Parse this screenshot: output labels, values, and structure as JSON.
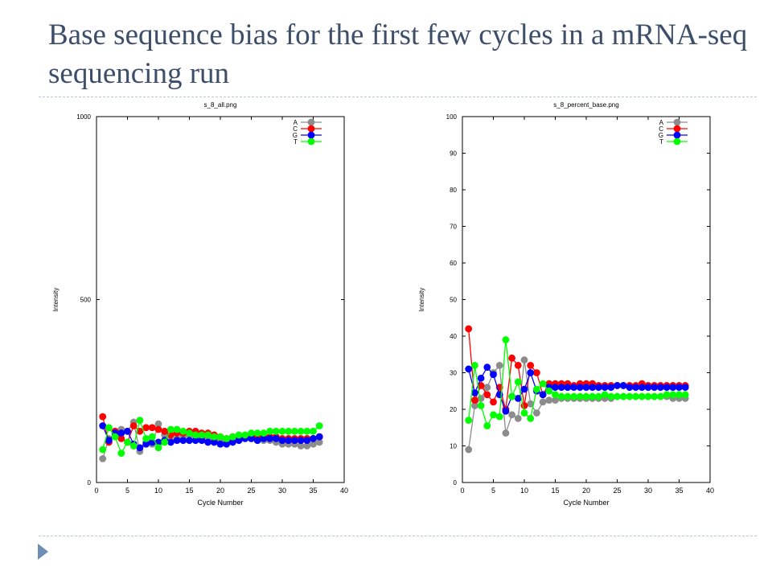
{
  "slide": {
    "title": "Base sequence bias for the first few cycles in a mRNA-seq sequencing run"
  },
  "colors": {
    "A": "#8c8c8c",
    "C": "#ff0000",
    "G": "#0000ff",
    "T": "#00ff00",
    "title_text": "#3d4e6a",
    "rule": "#b8c6d6",
    "bullet": "#6f8eb5"
  },
  "chart_data": [
    {
      "type": "line",
      "title": "s_8_all.png",
      "xlabel": "Cycle Number",
      "ylabel": "Intensity",
      "xlim": [
        0,
        40
      ],
      "ylim": [
        0,
        1000
      ],
      "xticks": [
        0,
        5,
        10,
        15,
        20,
        25,
        30,
        35,
        40
      ],
      "yticks": [
        0,
        500,
        1000
      ],
      "grid": false,
      "legend": "top-right",
      "x": [
        1,
        2,
        3,
        4,
        5,
        6,
        7,
        8,
        9,
        10,
        11,
        12,
        13,
        14,
        15,
        16,
        17,
        18,
        19,
        20,
        21,
        22,
        23,
        24,
        25,
        26,
        27,
        28,
        29,
        30,
        31,
        32,
        33,
        34,
        35,
        36
      ],
      "series": [
        {
          "name": "A",
          "color": "#8c8c8c",
          "values": [
            65,
            120,
            130,
            145,
            140,
            165,
            85,
            110,
            105,
            160,
            130,
            115,
            120,
            125,
            130,
            125,
            125,
            120,
            120,
            115,
            115,
            120,
            120,
            125,
            120,
            115,
            115,
            115,
            110,
            105,
            105,
            105,
            100,
            100,
            105,
            110
          ]
        },
        {
          "name": "C",
          "color": "#ff0000",
          "values": [
            180,
            110,
            140,
            120,
            110,
            155,
            140,
            150,
            150,
            145,
            140,
            130,
            135,
            135,
            140,
            140,
            135,
            135,
            130,
            125,
            120,
            125,
            125,
            125,
            125,
            125,
            125,
            125,
            125,
            120,
            120,
            120,
            120,
            120,
            120,
            125
          ]
        },
        {
          "name": "G",
          "color": "#0000ff",
          "values": [
            155,
            115,
            135,
            135,
            140,
            105,
            95,
            105,
            110,
            110,
            115,
            110,
            115,
            115,
            115,
            115,
            115,
            110,
            110,
            105,
            105,
            110,
            115,
            120,
            120,
            115,
            120,
            120,
            120,
            115,
            115,
            115,
            115,
            115,
            120,
            125
          ]
        },
        {
          "name": "T",
          "color": "#00ff00",
          "values": [
            90,
            150,
            125,
            80,
            110,
            100,
            170,
            120,
            125,
            95,
            110,
            145,
            145,
            140,
            135,
            130,
            130,
            130,
            125,
            125,
            120,
            125,
            130,
            130,
            135,
            135,
            135,
            140,
            140,
            140,
            140,
            140,
            140,
            140,
            140,
            155
          ]
        }
      ]
    },
    {
      "type": "line",
      "title": "s_8_percent_base.png",
      "xlabel": "Cycle Number",
      "ylabel": "Intensity",
      "xlim": [
        0,
        40
      ],
      "ylim": [
        0,
        100
      ],
      "xticks": [
        0,
        5,
        10,
        15,
        20,
        25,
        30,
        35,
        40
      ],
      "yticks": [
        0,
        10,
        20,
        30,
        40,
        50,
        60,
        70,
        80,
        90,
        100
      ],
      "grid": false,
      "legend": "top-right",
      "x": [
        1,
        2,
        3,
        4,
        5,
        6,
        7,
        8,
        9,
        10,
        11,
        12,
        13,
        14,
        15,
        16,
        17,
        18,
        19,
        20,
        21,
        22,
        23,
        24,
        25,
        26,
        27,
        28,
        29,
        30,
        31,
        32,
        33,
        34,
        35,
        36
      ],
      "series": [
        {
          "name": "A",
          "color": "#8c8c8c",
          "values": [
            9,
            21,
            23,
            26,
            30,
            32,
            13.5,
            18.5,
            17.5,
            33.5,
            21.5,
            19,
            22,
            22.5,
            22.5,
            23,
            23,
            23,
            23,
            23,
            23,
            23,
            23,
            23,
            23.5,
            23.5,
            23.5,
            23.5,
            23.5,
            23.5,
            23.5,
            23.5,
            23.5,
            23,
            23,
            23
          ]
        },
        {
          "name": "C",
          "color": "#ff0000",
          "values": [
            42,
            22.5,
            26.5,
            24,
            22,
            26,
            20,
            34,
            32,
            21,
            32,
            30,
            24,
            27,
            27,
            27,
            27,
            26.5,
            27,
            27,
            27,
            26.5,
            26.5,
            26.5,
            26.5,
            26.5,
            26.5,
            26.5,
            27,
            26.5,
            26.5,
            26.5,
            26.5,
            26.5,
            26.5,
            26.5
          ]
        },
        {
          "name": "G",
          "color": "#0000ff",
          "values": [
            31,
            24.5,
            28.5,
            31.5,
            29.5,
            24,
            19.5,
            23.5,
            23,
            25.5,
            30,
            25,
            24,
            26,
            26,
            26,
            26,
            26,
            26,
            26,
            26,
            26,
            26,
            26,
            26.5,
            26.5,
            26,
            26,
            26,
            26,
            26,
            26,
            26,
            26,
            26,
            26
          ]
        },
        {
          "name": "T",
          "color": "#00ff00",
          "values": [
            17,
            32,
            21,
            15.5,
            18.5,
            18,
            39,
            23.5,
            27.5,
            19,
            17.5,
            25.5,
            27,
            25,
            24,
            23.5,
            23.5,
            23.5,
            23.5,
            23.5,
            23.5,
            23.5,
            24,
            23.5,
            23.5,
            23.5,
            23.5,
            23.5,
            23.5,
            23.5,
            23.5,
            23.5,
            24,
            24,
            24,
            24
          ]
        }
      ]
    }
  ]
}
